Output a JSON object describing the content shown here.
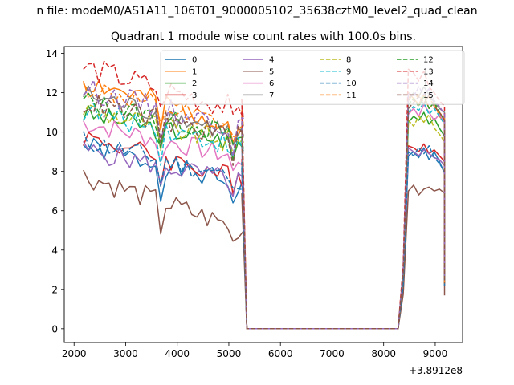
{
  "chart_data": {
    "type": "line",
    "suptitle": "n file: modeM0/AS1A11_106T01_9000005102_35638cztM0_level2_quad_clean",
    "title": "Quadrant 1 module wise count rates with 100.0s bins.",
    "xlabel": "",
    "ylabel": "",
    "x_offset_label": "+3.8912e8",
    "xlim": [
      1810,
      9530
    ],
    "ylim": [
      -0.7,
      14.35
    ],
    "x_ticks": [
      2000,
      3000,
      4000,
      5000,
      6000,
      7000,
      8000,
      9000
    ],
    "y_ticks": [
      0,
      2,
      4,
      6,
      8,
      10,
      12,
      14
    ],
    "grid": false,
    "legend": {
      "placement": "upper center",
      "columns": 4
    },
    "x_segments": [
      {
        "start": 2180,
        "step": 100,
        "count": 32
      },
      {
        "start": 5250,
        "step": 100,
        "count": 11
      },
      {
        "start": 8280,
        "step": 100,
        "count": 10
      },
      {
        "start": 9180,
        "step": 0,
        "count": 1
      }
    ],
    "plateau_length": 11,
    "series": [
      {
        "name": "0",
        "color": "#1f77b4",
        "dashed": false,
        "base": 9.3,
        "slope": -0.022,
        "noise": 0.55,
        "tail": [
          8.8,
          9.0,
          8.7,
          9.2,
          8.6,
          9.0,
          8.5,
          7.9
        ],
        "end": 2.6,
        "seed": 1
      },
      {
        "name": "1",
        "color": "#ff7f0e",
        "dashed": false,
        "base": 12.6,
        "slope": -0.025,
        "noise": 0.6,
        "tail": [
          12.0,
          11.7,
          11.4,
          11.9,
          11.2,
          11.5,
          10.8,
          10.5
        ],
        "end": 2.4,
        "seed": 2
      },
      {
        "name": "2",
        "color": "#2ca02c",
        "dashed": false,
        "base": 10.9,
        "slope": -0.016,
        "noise": 0.55,
        "tail": [
          10.5,
          10.8,
          10.6,
          11.0,
          10.4,
          10.7,
          10.2,
          9.8
        ],
        "end": 2.3,
        "seed": 3
      },
      {
        "name": "3",
        "color": "#d62728",
        "dashed": false,
        "base": 9.8,
        "slope": -0.024,
        "noise": 0.55,
        "tail": [
          9.3,
          9.2,
          9.0,
          9.4,
          8.9,
          9.1,
          8.8,
          8.5
        ],
        "end": 2.5,
        "seed": 4
      },
      {
        "name": "4",
        "color": "#9467bd",
        "dashed": false,
        "base": 9.1,
        "slope": -0.018,
        "noise": 0.55,
        "tail": [
          9.2,
          9.0,
          8.8,
          9.1,
          8.9,
          8.7,
          8.6,
          8.3
        ],
        "end": 2.2,
        "seed": 5
      },
      {
        "name": "5",
        "color": "#8c564b",
        "dashed": false,
        "base": 7.8,
        "slope": -0.03,
        "noise": 0.6,
        "tail": [
          7.0,
          7.3,
          6.8,
          7.1,
          7.2,
          7.0,
          7.1,
          6.9
        ],
        "end": 1.7,
        "seed": 6
      },
      {
        "name": "6",
        "color": "#e377c2",
        "dashed": false,
        "base": 10.5,
        "slope": -0.02,
        "noise": 0.55,
        "tail": [
          10.9,
          11.2,
          10.8,
          11.4,
          11.0,
          10.6,
          10.9,
          10.5
        ],
        "end": 2.4,
        "seed": 7
      },
      {
        "name": "7",
        "color": "#7f7f7f",
        "dashed": false,
        "base": 11.9,
        "slope": -0.022,
        "noise": 0.6,
        "tail": [
          11.6,
          12.0,
          11.8,
          12.3,
          11.9,
          11.5,
          11.2,
          11.0
        ],
        "end": 2.5,
        "seed": 8
      },
      {
        "name": "8",
        "color": "#bcbd22",
        "dashed": true,
        "base": 11.2,
        "slope": -0.02,
        "noise": 0.6,
        "tail": [
          10.6,
          10.3,
          10.8,
          10.5,
          10.9,
          10.2,
          9.9,
          9.5
        ],
        "end": 2.3,
        "seed": 9
      },
      {
        "name": "9",
        "color": "#17becf",
        "dashed": true,
        "base": 11.1,
        "slope": -0.02,
        "noise": 0.6,
        "tail": [
          11.0,
          11.3,
          11.1,
          11.5,
          10.9,
          11.2,
          10.8,
          10.4
        ],
        "end": 2.4,
        "seed": 10
      },
      {
        "name": "10",
        "color": "#1f77b4",
        "dashed": true,
        "base": 9.6,
        "slope": -0.022,
        "noise": 0.55,
        "tail": [
          9.0,
          8.8,
          9.2,
          8.9,
          9.3,
          8.7,
          8.4,
          8.0
        ],
        "end": 2.2,
        "seed": 11
      },
      {
        "name": "11",
        "color": "#ff7f0e",
        "dashed": true,
        "base": 12.3,
        "slope": -0.024,
        "noise": 0.6,
        "tail": [
          11.8,
          11.6,
          11.9,
          11.5,
          11.8,
          11.3,
          11.0,
          10.7
        ],
        "end": 2.4,
        "seed": 12
      },
      {
        "name": "12",
        "color": "#2ca02c",
        "dashed": true,
        "base": 11.6,
        "slope": -0.02,
        "noise": 0.55,
        "tail": [
          11.4,
          11.7,
          11.3,
          11.8,
          11.2,
          11.5,
          11.0,
          10.6
        ],
        "end": 2.5,
        "seed": 13
      },
      {
        "name": "13",
        "color": "#d62728",
        "dashed": true,
        "base": 13.3,
        "slope": -0.024,
        "noise": 0.65,
        "tail": [
          13.2,
          13.0,
          12.6,
          13.1,
          12.3,
          12.0,
          11.6,
          11.3
        ],
        "end": 2.8,
        "seed": 14
      },
      {
        "name": "14",
        "color": "#9467bd",
        "dashed": true,
        "base": 12.2,
        "slope": -0.022,
        "noise": 0.6,
        "tail": [
          12.0,
          11.8,
          12.3,
          11.9,
          12.2,
          11.6,
          11.3,
          10.9
        ],
        "end": 2.5,
        "seed": 15
      },
      {
        "name": "15",
        "color": "#8c564b",
        "dashed": true,
        "base": 11.5,
        "slope": -0.02,
        "noise": 0.6,
        "tail": [
          11.2,
          11.5,
          11.8,
          11.4,
          11.9,
          11.3,
          11.0,
          10.6
        ],
        "end": 2.3,
        "seed": 16
      }
    ]
  }
}
